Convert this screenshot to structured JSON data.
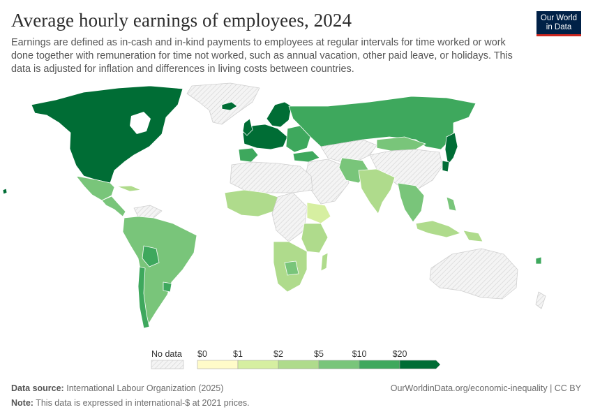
{
  "header": {
    "title": "Average hourly earnings of employees, 2024",
    "subtitle": "Earnings are defined as in-cash and in-kind payments to employees at regular intervals for time worked or work done together with remuneration for time not worked, such as annual vacation, other paid leave, or holidays. This data is adjusted for inflation and differences in living costs between countries."
  },
  "logo": {
    "line1": "Our World",
    "line2": "in Data"
  },
  "legend": {
    "no_data_label": "No data",
    "bins": [
      {
        "label": "$0",
        "color": "#fffbc9"
      },
      {
        "label": "$1",
        "color": "#d6efa1"
      },
      {
        "label": "$2",
        "color": "#afdb8c"
      },
      {
        "label": "$5",
        "color": "#79c57a"
      },
      {
        "label": "$10",
        "color": "#3ea85d"
      },
      {
        "label": "$20",
        "color": "#006d35"
      }
    ]
  },
  "colors": {
    "no_data_fill": "#f0f0f0",
    "border": "#ffffff",
    "brand": "#002147",
    "brand_accent": "#ce261e"
  },
  "footer": {
    "source_label": "Data source:",
    "source_text": "International Labour Organization (2025)",
    "note_label": "Note:",
    "note_text": "This data is expressed in international-$ at 2021 prices.",
    "url": "OurWorldinData.org/economic-inequality | CC BY"
  }
}
